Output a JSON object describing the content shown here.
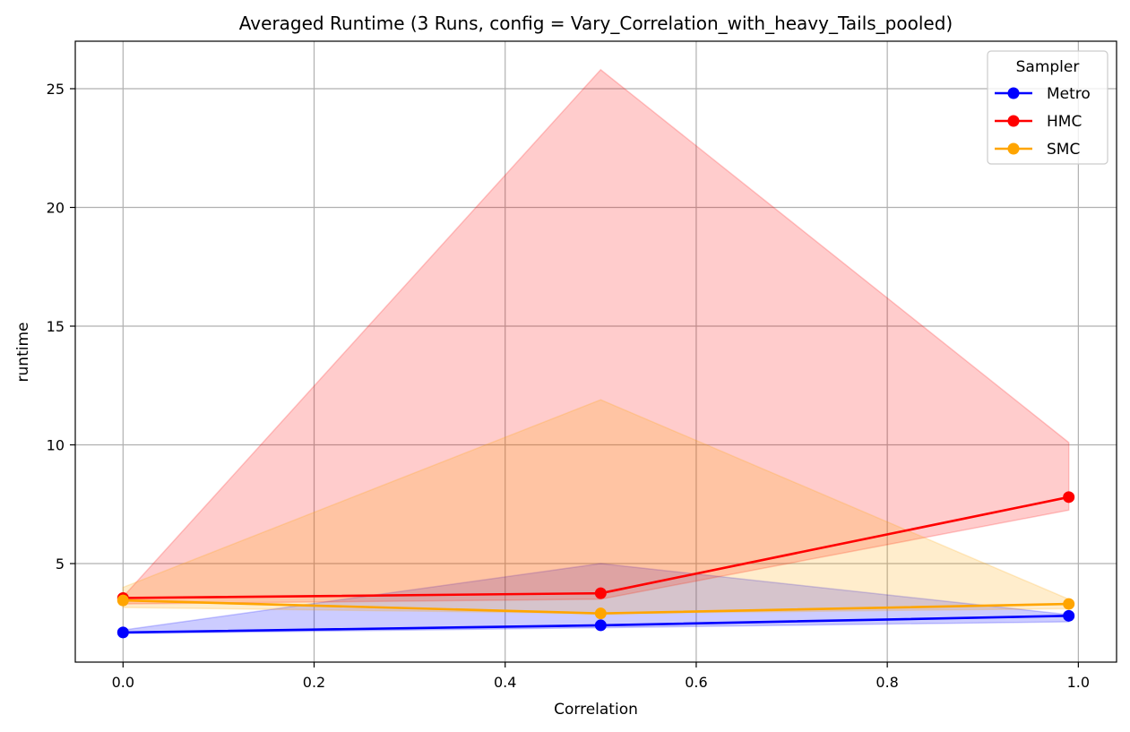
{
  "chart_data": {
    "type": "line",
    "title": "Averaged Runtime (3 Runs, config = Vary_Correlation_with_heavy_Tails_pooled)",
    "xlabel": "Correlation",
    "ylabel": "runtime",
    "xlim": [
      -0.05,
      1.04
    ],
    "ylim": [
      0.85,
      27.0
    ],
    "xticks": [
      0.0,
      0.2,
      0.4,
      0.6,
      0.8,
      1.0
    ],
    "xtick_labels": [
      "0.0",
      "0.2",
      "0.4",
      "0.6",
      "0.8",
      "1.0"
    ],
    "yticks": [
      5,
      10,
      15,
      20,
      25
    ],
    "ytick_labels": [
      "5",
      "10",
      "15",
      "20",
      "25"
    ],
    "grid": true,
    "legend": {
      "title": "Sampler",
      "position": "top-right"
    },
    "x": [
      0.0,
      0.5,
      0.99
    ],
    "series": [
      {
        "name": "Metro",
        "color": "#0000ff",
        "values": [
          2.1,
          2.4,
          2.8
        ],
        "band_low": [
          2.05,
          2.3,
          2.55
        ],
        "band_high": [
          2.2,
          5.0,
          2.85
        ]
      },
      {
        "name": "HMC",
        "color": "#ff0000",
        "values": [
          3.55,
          3.75,
          7.8
        ],
        "band_low": [
          3.3,
          3.5,
          7.25
        ],
        "band_high": [
          3.6,
          25.8,
          10.1
        ]
      },
      {
        "name": "SMC",
        "color": "#ffa500",
        "values": [
          3.45,
          2.9,
          3.3
        ],
        "band_low": [
          3.15,
          2.9,
          3.1
        ],
        "band_high": [
          4.0,
          11.9,
          3.5
        ]
      }
    ]
  }
}
